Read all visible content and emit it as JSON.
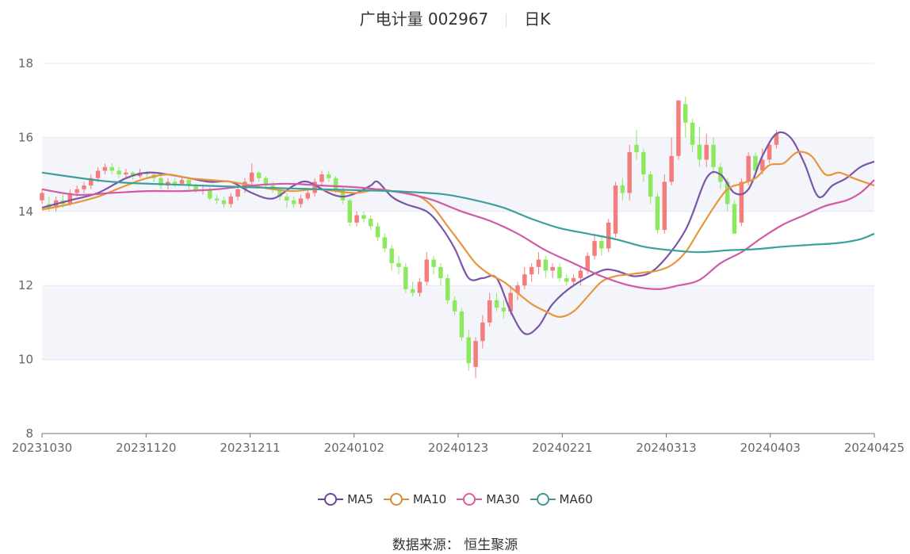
{
  "header": {
    "stock": "广电计量 002967",
    "period": "日K"
  },
  "source": {
    "label": "数据来源：",
    "name": "恒生聚源"
  },
  "colors": {
    "up": "#f47c7c",
    "down": "#8be85f",
    "grid": "#e6e8f2",
    "band": "#f4f5fa"
  },
  "chart_data": {
    "type": "candlestick",
    "x_ticks": [
      "20231030",
      "20231120",
      "20231211",
      "20240102",
      "20240123",
      "20240221",
      "20240313",
      "20240403",
      "20240425"
    ],
    "y_ticks": [
      8,
      10,
      12,
      14,
      16,
      18
    ],
    "ylim": [
      8,
      18
    ],
    "n_days": 120,
    "legend": [
      {
        "name": "MA5",
        "color": "#7040a0"
      },
      {
        "name": "MA10",
        "color": "#e08a3c"
      },
      {
        "name": "MA30",
        "color": "#d35fa5"
      },
      {
        "name": "MA60",
        "color": "#3e9a98"
      }
    ],
    "ma_lines": [
      {
        "name": "MA5",
        "color": "#7a55a8",
        "points": [
          [
            0,
            14.1
          ],
          [
            4,
            14.3
          ],
          [
            8,
            14.5
          ],
          [
            12,
            14.9
          ],
          [
            15,
            15.05
          ],
          [
            18,
            15.0
          ],
          [
            21,
            14.9
          ],
          [
            24,
            14.8
          ],
          [
            27,
            14.8
          ],
          [
            30,
            14.5
          ],
          [
            33,
            14.35
          ],
          [
            36,
            14.7
          ],
          [
            38,
            14.8
          ],
          [
            41,
            14.5
          ],
          [
            43,
            14.4
          ],
          [
            45,
            14.5
          ],
          [
            47,
            14.7
          ],
          [
            48,
            14.8
          ],
          [
            50,
            14.4
          ],
          [
            52,
            14.2
          ],
          [
            55,
            14.0
          ],
          [
            57,
            13.6
          ],
          [
            59,
            13.0
          ],
          [
            61,
            12.2
          ],
          [
            63,
            12.2
          ],
          [
            65,
            12.2
          ],
          [
            67,
            11.3
          ],
          [
            69,
            10.7
          ],
          [
            71,
            10.9
          ],
          [
            73,
            11.5
          ],
          [
            76,
            12.0
          ],
          [
            80,
            12.4
          ],
          [
            82,
            12.4
          ],
          [
            85,
            12.25
          ],
          [
            88,
            12.5
          ],
          [
            92,
            13.5
          ],
          [
            95,
            14.9
          ],
          [
            97,
            15.0
          ],
          [
            99,
            14.5
          ],
          [
            101,
            14.6
          ],
          [
            103,
            15.5
          ],
          [
            105,
            16.1
          ],
          [
            107,
            16.0
          ],
          [
            109,
            15.3
          ],
          [
            111,
            14.4
          ],
          [
            113,
            14.7
          ],
          [
            115,
            14.9
          ],
          [
            117,
            15.2
          ],
          [
            119,
            15.35
          ]
        ]
      },
      {
        "name": "MA10",
        "color": "#e8963c",
        "points": [
          [
            0,
            14.05
          ],
          [
            4,
            14.2
          ],
          [
            8,
            14.4
          ],
          [
            12,
            14.7
          ],
          [
            15,
            14.9
          ],
          [
            18,
            15.0
          ],
          [
            21,
            14.9
          ],
          [
            24,
            14.85
          ],
          [
            27,
            14.8
          ],
          [
            30,
            14.7
          ],
          [
            33,
            14.6
          ],
          [
            36,
            14.55
          ],
          [
            39,
            14.6
          ],
          [
            42,
            14.55
          ],
          [
            45,
            14.5
          ],
          [
            48,
            14.6
          ],
          [
            50,
            14.55
          ],
          [
            52,
            14.5
          ],
          [
            54,
            14.4
          ],
          [
            56,
            14.1
          ],
          [
            58,
            13.6
          ],
          [
            60,
            13.1
          ],
          [
            62,
            12.6
          ],
          [
            64,
            12.3
          ],
          [
            66,
            12.1
          ],
          [
            68,
            11.8
          ],
          [
            70,
            11.5
          ],
          [
            72,
            11.3
          ],
          [
            74,
            11.15
          ],
          [
            76,
            11.3
          ],
          [
            78,
            11.7
          ],
          [
            80,
            12.1
          ],
          [
            82,
            12.25
          ],
          [
            84,
            12.3
          ],
          [
            86,
            12.35
          ],
          [
            88,
            12.4
          ],
          [
            90,
            12.55
          ],
          [
            92,
            12.9
          ],
          [
            94,
            13.5
          ],
          [
            96,
            14.1
          ],
          [
            98,
            14.6
          ],
          [
            100,
            14.75
          ],
          [
            102,
            14.9
          ],
          [
            104,
            15.25
          ],
          [
            106,
            15.3
          ],
          [
            108,
            15.6
          ],
          [
            110,
            15.5
          ],
          [
            112,
            15.0
          ],
          [
            114,
            15.05
          ],
          [
            116,
            14.9
          ],
          [
            119,
            14.7
          ]
        ]
      },
      {
        "name": "MA30",
        "color": "#d05aa8",
        "points": [
          [
            0,
            14.6
          ],
          [
            5,
            14.45
          ],
          [
            10,
            14.5
          ],
          [
            15,
            14.55
          ],
          [
            20,
            14.55
          ],
          [
            25,
            14.6
          ],
          [
            30,
            14.7
          ],
          [
            35,
            14.75
          ],
          [
            40,
            14.7
          ],
          [
            45,
            14.65
          ],
          [
            50,
            14.55
          ],
          [
            53,
            14.45
          ],
          [
            56,
            14.3
          ],
          [
            60,
            14.0
          ],
          [
            64,
            13.75
          ],
          [
            68,
            13.4
          ],
          [
            72,
            12.95
          ],
          [
            76,
            12.6
          ],
          [
            80,
            12.25
          ],
          [
            84,
            12.0
          ],
          [
            88,
            11.9
          ],
          [
            91,
            12.0
          ],
          [
            94,
            12.15
          ],
          [
            97,
            12.6
          ],
          [
            100,
            12.9
          ],
          [
            103,
            13.3
          ],
          [
            106,
            13.65
          ],
          [
            109,
            13.9
          ],
          [
            112,
            14.15
          ],
          [
            115,
            14.3
          ],
          [
            117,
            14.5
          ],
          [
            119,
            14.85
          ]
        ]
      },
      {
        "name": "MA60",
        "color": "#3aa09c",
        "points": [
          [
            0,
            15.05
          ],
          [
            10,
            14.8
          ],
          [
            20,
            14.72
          ],
          [
            30,
            14.65
          ],
          [
            40,
            14.6
          ],
          [
            50,
            14.55
          ],
          [
            55,
            14.5
          ],
          [
            58,
            14.45
          ],
          [
            62,
            14.3
          ],
          [
            66,
            14.1
          ],
          [
            70,
            13.8
          ],
          [
            74,
            13.55
          ],
          [
            78,
            13.4
          ],
          [
            82,
            13.25
          ],
          [
            86,
            13.05
          ],
          [
            90,
            12.95
          ],
          [
            94,
            12.9
          ],
          [
            98,
            12.95
          ],
          [
            102,
            12.98
          ],
          [
            106,
            13.05
          ],
          [
            110,
            13.1
          ],
          [
            114,
            13.15
          ],
          [
            117,
            13.25
          ],
          [
            119,
            13.4
          ]
        ]
      }
    ],
    "candles": [
      [
        0,
        14.3,
        14.5,
        14.6,
        14.2
      ],
      [
        1,
        14.2,
        14.1,
        14.4,
        14.0
      ],
      [
        2,
        14.1,
        14.3,
        14.4,
        14.0
      ],
      [
        3,
        14.3,
        14.2,
        14.45,
        14.1
      ],
      [
        4,
        14.2,
        14.5,
        14.6,
        14.15
      ],
      [
        5,
        14.5,
        14.6,
        14.7,
        14.4
      ],
      [
        6,
        14.6,
        14.7,
        14.8,
        14.5
      ],
      [
        7,
        14.7,
        14.9,
        15.0,
        14.6
      ],
      [
        8,
        14.9,
        15.1,
        15.2,
        14.8
      ],
      [
        9,
        15.1,
        15.2,
        15.3,
        15.0
      ],
      [
        10,
        15.2,
        15.1,
        15.3,
        15.0
      ],
      [
        11,
        15.1,
        15.0,
        15.2,
        14.9
      ],
      [
        12,
        15.0,
        15.05,
        15.15,
        14.9
      ],
      [
        13,
        15.05,
        14.95,
        15.1,
        14.85
      ],
      [
        14,
        14.95,
        15.05,
        15.15,
        14.9
      ],
      [
        15,
        15.05,
        15.0,
        15.1,
        14.9
      ],
      [
        16,
        15.0,
        14.9,
        15.05,
        14.8
      ],
      [
        17,
        14.9,
        14.7,
        14.95,
        14.6
      ],
      [
        18,
        14.7,
        14.8,
        14.9,
        14.6
      ],
      [
        19,
        14.8,
        14.75,
        14.9,
        14.65
      ],
      [
        20,
        14.75,
        14.85,
        14.95,
        14.7
      ],
      [
        21,
        14.85,
        14.7,
        14.9,
        14.6
      ],
      [
        22,
        14.7,
        14.55,
        14.75,
        14.5
      ],
      [
        23,
        14.55,
        14.6,
        14.7,
        14.45
      ],
      [
        24,
        14.6,
        14.35,
        14.65,
        14.3
      ],
      [
        25,
        14.35,
        14.3,
        14.45,
        14.2
      ],
      [
        26,
        14.3,
        14.2,
        14.4,
        14.1
      ],
      [
        27,
        14.2,
        14.4,
        14.5,
        14.1
      ],
      [
        28,
        14.4,
        14.6,
        14.7,
        14.3
      ],
      [
        29,
        14.6,
        14.8,
        14.9,
        14.5
      ],
      [
        30,
        14.8,
        15.05,
        15.3,
        14.7
      ],
      [
        31,
        15.05,
        14.9,
        15.1,
        14.8
      ],
      [
        32,
        14.9,
        14.7,
        14.95,
        14.6
      ],
      [
        33,
        14.7,
        14.6,
        14.8,
        14.5
      ],
      [
        34,
        14.6,
        14.4,
        14.65,
        14.3
      ],
      [
        35,
        14.4,
        14.3,
        14.5,
        14.1
      ],
      [
        36,
        14.3,
        14.2,
        14.4,
        14.1
      ],
      [
        37,
        14.2,
        14.35,
        14.45,
        14.1
      ],
      [
        38,
        14.35,
        14.5,
        14.6,
        14.3
      ],
      [
        39,
        14.5,
        14.8,
        14.9,
        14.4
      ],
      [
        40,
        14.8,
        15.0,
        15.1,
        14.7
      ],
      [
        41,
        15.0,
        14.9,
        15.1,
        14.8
      ],
      [
        42,
        14.9,
        14.6,
        14.95,
        14.5
      ],
      [
        43,
        14.6,
        14.3,
        14.65,
        14.2
      ],
      [
        44,
        14.3,
        13.7,
        14.35,
        13.6
      ],
      [
        45,
        13.7,
        13.9,
        14.0,
        13.6
      ],
      [
        46,
        13.9,
        13.8,
        14.0,
        13.7
      ],
      [
        47,
        13.8,
        13.6,
        13.9,
        13.5
      ],
      [
        48,
        13.6,
        13.3,
        13.7,
        13.2
      ],
      [
        49,
        13.3,
        13.0,
        13.4,
        12.9
      ],
      [
        50,
        13.0,
        12.6,
        13.1,
        12.4
      ],
      [
        51,
        12.6,
        12.5,
        12.8,
        12.3
      ],
      [
        52,
        12.5,
        11.9,
        12.6,
        11.8
      ],
      [
        53,
        11.9,
        11.8,
        12.1,
        11.7
      ],
      [
        54,
        11.8,
        12.1,
        12.2,
        11.7
      ],
      [
        55,
        12.1,
        12.7,
        12.9,
        12.0
      ],
      [
        56,
        12.7,
        12.5,
        12.8,
        12.3
      ],
      [
        57,
        12.5,
        12.2,
        12.6,
        12.0
      ],
      [
        58,
        12.2,
        11.6,
        12.3,
        11.5
      ],
      [
        59,
        11.6,
        11.3,
        11.7,
        11.2
      ],
      [
        60,
        11.3,
        10.6,
        11.4,
        10.5
      ],
      [
        61,
        10.6,
        9.9,
        10.8,
        9.7
      ],
      [
        62,
        9.8,
        10.5,
        10.6,
        9.5
      ],
      [
        63,
        10.5,
        11.0,
        11.2,
        10.3
      ],
      [
        64,
        11.0,
        11.6,
        11.8,
        10.9
      ],
      [
        65,
        11.6,
        11.4,
        11.8,
        11.3
      ],
      [
        66,
        11.4,
        11.3,
        11.6,
        11.1
      ],
      [
        67,
        11.3,
        11.8,
        12.0,
        11.2
      ],
      [
        68,
        11.8,
        12.0,
        12.1,
        11.6
      ],
      [
        69,
        12.0,
        12.3,
        12.5,
        11.9
      ],
      [
        70,
        12.3,
        12.5,
        12.6,
        12.1
      ],
      [
        71,
        12.5,
        12.7,
        12.9,
        12.3
      ],
      [
        72,
        12.7,
        12.4,
        12.8,
        12.2
      ],
      [
        73,
        12.4,
        12.5,
        12.6,
        12.2
      ],
      [
        74,
        12.5,
        12.2,
        12.6,
        12.1
      ],
      [
        75,
        12.2,
        12.1,
        12.3,
        12.0
      ],
      [
        76,
        12.1,
        12.2,
        12.3,
        12.0
      ],
      [
        77,
        12.2,
        12.4,
        12.5,
        12.0
      ],
      [
        78,
        12.4,
        12.8,
        12.9,
        12.3
      ],
      [
        79,
        12.8,
        13.2,
        13.4,
        12.7
      ],
      [
        80,
        13.2,
        13.0,
        13.3,
        12.8
      ],
      [
        81,
        13.0,
        13.7,
        13.8,
        12.9
      ],
      [
        82,
        13.4,
        14.7,
        14.8,
        13.3
      ],
      [
        83,
        14.7,
        14.5,
        14.9,
        14.3
      ],
      [
        84,
        14.5,
        15.6,
        15.8,
        14.3
      ],
      [
        85,
        15.8,
        15.6,
        16.2,
        15.4
      ],
      [
        86,
        15.6,
        15.0,
        15.7,
        14.8
      ],
      [
        87,
        15.0,
        14.4,
        15.1,
        14.2
      ],
      [
        88,
        14.4,
        13.5,
        14.5,
        13.4
      ],
      [
        89,
        13.5,
        14.8,
        15.0,
        13.4
      ],
      [
        90,
        14.8,
        15.5,
        16.0,
        14.7
      ],
      [
        91,
        15.5,
        17.0,
        17.0,
        15.4
      ],
      [
        92,
        16.9,
        16.4,
        17.1,
        16.0
      ],
      [
        93,
        16.4,
        15.8,
        16.5,
        15.6
      ],
      [
        94,
        15.8,
        15.4,
        16.3,
        15.2
      ],
      [
        95,
        15.4,
        15.8,
        16.1,
        15.2
      ],
      [
        96,
        15.8,
        15.2,
        16.0,
        15.0
      ],
      [
        97,
        15.2,
        14.8,
        15.3,
        14.6
      ],
      [
        98,
        14.8,
        14.2,
        14.9,
        14.0
      ],
      [
        99,
        14.2,
        13.4,
        14.3,
        13.4
      ],
      [
        100,
        13.7,
        14.8,
        14.9,
        13.6
      ],
      [
        101,
        14.8,
        15.5,
        15.6,
        14.7
      ],
      [
        102,
        15.5,
        15.1,
        15.6,
        15.0
      ],
      [
        103,
        15.1,
        15.4,
        15.7,
        15.0
      ],
      [
        104,
        15.4,
        15.8,
        15.9,
        15.3
      ],
      [
        105,
        15.8,
        16.1,
        16.2,
        15.7
      ]
    ]
  }
}
